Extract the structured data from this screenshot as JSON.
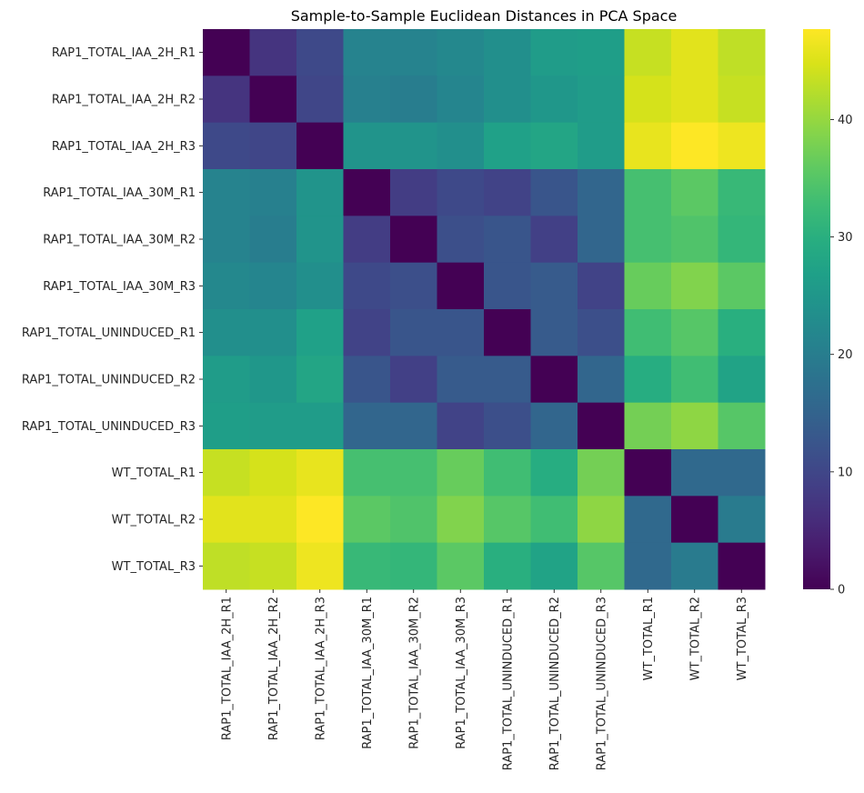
{
  "chart_data": {
    "type": "heatmap",
    "title": "Sample-to-Sample Euclidean Distances in PCA Space",
    "xlabel": "",
    "ylabel": "",
    "colormap": "viridis",
    "vmin": 0,
    "vmax": 47.7,
    "colorbar": {
      "ticks": [
        0,
        10,
        20,
        30,
        40
      ],
      "tick_labels": [
        "0",
        "10",
        "20",
        "30",
        "40"
      ],
      "placement": "right"
    },
    "grid": false,
    "row_labels": [
      "RAP1_TOTAL_IAA_2H_R1",
      "RAP1_TOTAL_IAA_2H_R2",
      "RAP1_TOTAL_IAA_2H_R3",
      "RAP1_TOTAL_IAA_30M_R1",
      "RAP1_TOTAL_IAA_30M_R2",
      "RAP1_TOTAL_IAA_30M_R3",
      "RAP1_TOTAL_UNINDUCED_R1",
      "RAP1_TOTAL_UNINDUCED_R2",
      "RAP1_TOTAL_UNINDUCED_R3",
      "WT_TOTAL_R1",
      "WT_TOTAL_R2",
      "WT_TOTAL_R3"
    ],
    "col_labels": [
      "RAP1_TOTAL_IAA_2H_R1",
      "RAP1_TOTAL_IAA_2H_R2",
      "RAP1_TOTAL_IAA_2H_R3",
      "RAP1_TOTAL_IAA_30M_R1",
      "RAP1_TOTAL_IAA_30M_R2",
      "RAP1_TOTAL_IAA_30M_R3",
      "RAP1_TOTAL_UNINDUCED_R1",
      "RAP1_TOTAL_UNINDUCED_R2",
      "RAP1_TOTAL_UNINDUCED_R3",
      "WT_TOTAL_R1",
      "WT_TOTAL_R2",
      "WT_TOTAL_R3"
    ],
    "values": [
      [
        0,
        7,
        10.5,
        21,
        21,
        22,
        23.5,
        26,
        26.5,
        43.5,
        45.5,
        43
      ],
      [
        7,
        0,
        10,
        20.5,
        20,
        21.5,
        23.5,
        25,
        26,
        44.5,
        45.5,
        43.5
      ],
      [
        10.5,
        10,
        0,
        24.5,
        24.5,
        23.5,
        27,
        28,
        26,
        46,
        47.7,
        46.5
      ],
      [
        21,
        20.5,
        24.5,
        0,
        8.5,
        10.5,
        9.5,
        12.5,
        15.5,
        33.5,
        35.5,
        32
      ],
      [
        21,
        20,
        24.5,
        8.5,
        0,
        11.5,
        12.5,
        9,
        15.5,
        33.5,
        34.5,
        31.5
      ],
      [
        22,
        21.5,
        23.5,
        10.5,
        11.5,
        0,
        12.5,
        13.5,
        9.5,
        36.5,
        38.5,
        35.5
      ],
      [
        23.5,
        23.5,
        27,
        9.5,
        12.5,
        12.5,
        0,
        13.5,
        11.5,
        33,
        35,
        30
      ],
      [
        26,
        25,
        28,
        12.5,
        9,
        13.5,
        13.5,
        0,
        15.5,
        29.5,
        33,
        27.5
      ],
      [
        26.5,
        26,
        26,
        15.5,
        15.5,
        9.5,
        11.5,
        15.5,
        0,
        37.5,
        39.5,
        35
      ],
      [
        43.5,
        44.5,
        46,
        33.5,
        33.5,
        36.5,
        33,
        29.5,
        37.5,
        0,
        16,
        16
      ],
      [
        45.5,
        45.5,
        47.7,
        35.5,
        34.5,
        38.5,
        35,
        33,
        39.5,
        16,
        0,
        19.5
      ],
      [
        43,
        43.5,
        46.5,
        32,
        31.5,
        35.5,
        30,
        27.5,
        35,
        16,
        19.5,
        0
      ]
    ]
  }
}
